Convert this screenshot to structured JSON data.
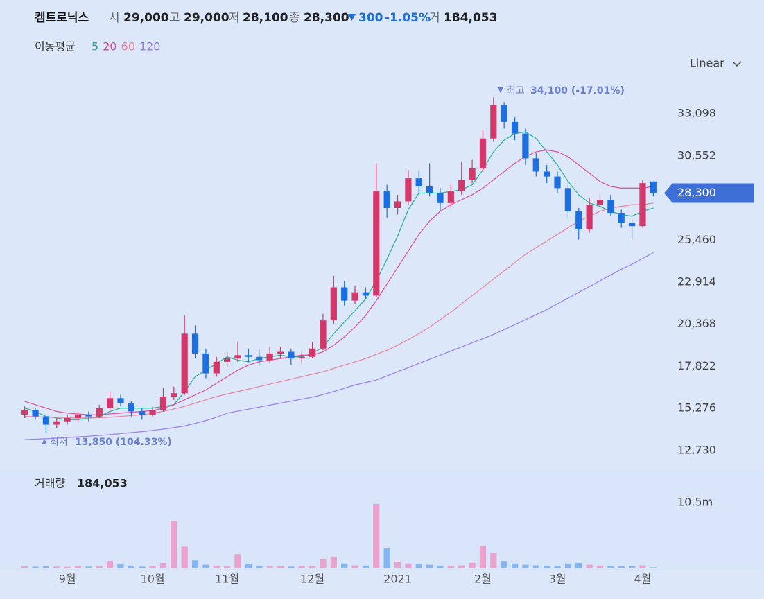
{
  "header": {
    "name": "켐트로닉스",
    "open_label": "시",
    "open": "29,000",
    "high_label": "고",
    "high": "29,000",
    "low_label": "저",
    "low": "28,100",
    "close_label": "종",
    "close": "28,300",
    "change": "300",
    "change_pct": "-1.05%",
    "volume_label": "거",
    "volume": "184,053"
  },
  "scale_button": "Linear",
  "chart_data": {
    "type": "candlestick",
    "ma_title": "이동평균",
    "categories": [
      null,
      null,
      null,
      null,
      "9월",
      null,
      null,
      null,
      null,
      null,
      null,
      null,
      "10월",
      null,
      null,
      null,
      null,
      null,
      null,
      "11월",
      null,
      null,
      null,
      null,
      null,
      null,
      null,
      "12월",
      null,
      null,
      null,
      null,
      null,
      null,
      null,
      "2021",
      null,
      null,
      null,
      null,
      null,
      null,
      null,
      "2월",
      null,
      null,
      null,
      null,
      null,
      null,
      "3월",
      null,
      null,
      null,
      null,
      null,
      null,
      null,
      "4월",
      null
    ],
    "open": [
      14900,
      15200,
      14800,
      14300,
      14500,
      14700,
      14900,
      14800,
      15300,
      15900,
      15600,
      15100,
      14900,
      15200,
      16000,
      16200,
      19800,
      18600,
      17400,
      18100,
      18300,
      18500,
      18400,
      18200,
      18600,
      18700,
      18300,
      18400,
      18900,
      20600,
      22600,
      21800,
      22300,
      22100,
      28400,
      27400,
      27800,
      29200,
      28700,
      28300,
      27700,
      28400,
      29100,
      29800,
      31600,
      33600,
      32600,
      31900,
      30400,
      29600,
      29300,
      28600,
      27200,
      26100,
      27600,
      27900,
      27100,
      26500,
      26300,
      29000
    ],
    "high": [
      15400,
      15300,
      14900,
      14700,
      14900,
      15100,
      15100,
      15500,
      16300,
      16100,
      15700,
      15300,
      15400,
      16500,
      16600,
      20900,
      20300,
      18900,
      18400,
      18700,
      19300,
      18900,
      18800,
      19000,
      19000,
      18900,
      18700,
      19300,
      21000,
      23300,
      23000,
      22700,
      22600,
      30100,
      28800,
      28200,
      29700,
      29600,
      30100,
      28600,
      28800,
      30200,
      30300,
      32100,
      34100,
      33800,
      32900,
      32200,
      30700,
      30000,
      29600,
      28900,
      27400,
      28000,
      28300,
      28200,
      27300,
      26700,
      29100,
      29000
    ],
    "low": [
      14700,
      14600,
      13850,
      14100,
      14300,
      14500,
      14500,
      14700,
      15200,
      15400,
      14800,
      14600,
      14800,
      15100,
      15800,
      16100,
      18300,
      17100,
      17200,
      17800,
      18100,
      18100,
      17900,
      18000,
      18300,
      17900,
      18000,
      18300,
      18800,
      20400,
      21500,
      21600,
      21900,
      22000,
      26800,
      27000,
      27600,
      28300,
      28100,
      27200,
      27500,
      28200,
      28900,
      29600,
      31400,
      32200,
      31500,
      30000,
      29300,
      28900,
      28300,
      26800,
      25500,
      25900,
      27400,
      26900,
      26200,
      25500,
      26200,
      28100
    ],
    "close": [
      15200,
      14800,
      14300,
      14500,
      14700,
      14900,
      14800,
      15300,
      15900,
      15600,
      15100,
      14900,
      15200,
      16000,
      16200,
      19800,
      18600,
      17400,
      18100,
      18300,
      18500,
      18400,
      18200,
      18600,
      18700,
      18300,
      18400,
      18900,
      20600,
      22600,
      21800,
      22300,
      22100,
      28400,
      27400,
      27800,
      29200,
      28700,
      28300,
      27700,
      28400,
      29100,
      29800,
      31600,
      33600,
      32600,
      31900,
      30400,
      29600,
      29300,
      28600,
      27200,
      26100,
      27600,
      27900,
      27100,
      26500,
      26300,
      28900,
      28300
    ],
    "volume": [
      320000,
      280000,
      350000,
      300000,
      260000,
      410000,
      300000,
      380000,
      1200000,
      650000,
      450000,
      300000,
      380000,
      900000,
      7600000,
      3500000,
      1300000,
      600000,
      450000,
      380000,
      2300000,
      700000,
      450000,
      380000,
      350000,
      300000,
      420000,
      380000,
      1500000,
      1900000,
      800000,
      500000,
      450000,
      10300000,
      3200000,
      1100000,
      800000,
      650000,
      600000,
      450000,
      420000,
      500000,
      900000,
      3600000,
      2500000,
      1200000,
      800000,
      600000,
      500000,
      450000,
      420000,
      800000,
      900000,
      600000,
      450000,
      400000,
      380000,
      350000,
      500000,
      184053
    ],
    "up_color": "#d2386a",
    "down_color": "#1c6fe0",
    "volume_up_color": "#e9a3cf",
    "volume_down_color": "#86b6f2",
    "series": [
      {
        "name": "5",
        "color": "#1fae8c",
        "values": [
          15300,
          15100,
          14800,
          14700,
          14600,
          14600,
          14700,
          14800,
          15100,
          15300,
          15300,
          15300,
          15300,
          15400,
          15500,
          16300,
          17200,
          17600,
          18000,
          18400,
          18200,
          18100,
          18300,
          18400,
          18500,
          18400,
          18400,
          18600,
          19000,
          19800,
          20500,
          21200,
          21900,
          23000,
          24300,
          25700,
          27300,
          28300,
          28300,
          28300,
          28400,
          28500,
          28800,
          29700,
          30800,
          31500,
          31900,
          32000,
          31600,
          30800,
          30000,
          29000,
          28200,
          27700,
          27500,
          27200,
          27000,
          26900,
          27200,
          27400
        ]
      },
      {
        "name": "20",
        "color": "#d9489a",
        "values": [
          15700,
          15500,
          15300,
          15100,
          15000,
          14950,
          14900,
          14900,
          14950,
          15000,
          15050,
          15100,
          15150,
          15300,
          15500,
          15800,
          16100,
          16400,
          16800,
          17200,
          17600,
          17900,
          18100,
          18200,
          18300,
          18400,
          18500,
          18500,
          18700,
          19100,
          19600,
          20200,
          20900,
          21800,
          22800,
          23800,
          24800,
          25800,
          26600,
          27200,
          27600,
          27900,
          28200,
          28600,
          29100,
          29600,
          30100,
          30500,
          30800,
          30900,
          30800,
          30500,
          30000,
          29500,
          29000,
          28700,
          28600,
          28600,
          28600,
          28700
        ]
      },
      {
        "name": "60",
        "color": "#e8809a",
        "values": [
          14800,
          14780,
          14760,
          14740,
          14720,
          14700,
          14700,
          14720,
          14750,
          14800,
          14850,
          14900,
          15000,
          15100,
          15250,
          15400,
          15600,
          15800,
          16000,
          16150,
          16300,
          16450,
          16600,
          16750,
          16900,
          17050,
          17200,
          17350,
          17500,
          17700,
          17900,
          18100,
          18300,
          18550,
          18800,
          19100,
          19450,
          19800,
          20200,
          20650,
          21100,
          21600,
          22100,
          22600,
          23100,
          23600,
          24100,
          24600,
          25000,
          25400,
          25800,
          26200,
          26600,
          26900,
          27200,
          27400,
          27500,
          27600,
          27600,
          27700
        ]
      },
      {
        "name": "120",
        "color": "#9a78ec",
        "values": [
          13400,
          13420,
          13450,
          13480,
          13520,
          13560,
          13600,
          13650,
          13700,
          13760,
          13820,
          13880,
          13950,
          14030,
          14120,
          14220,
          14380,
          14550,
          14750,
          15000,
          15120,
          15240,
          15360,
          15480,
          15600,
          15720,
          15840,
          15960,
          16120,
          16300,
          16500,
          16700,
          16850,
          17000,
          17250,
          17500,
          17750,
          18000,
          18250,
          18500,
          18750,
          19000,
          19250,
          19500,
          19750,
          20050,
          20350,
          20650,
          20950,
          21250,
          21600,
          21950,
          22300,
          22650,
          23000,
          23350,
          23700,
          24000,
          24350,
          24700
        ]
      }
    ],
    "ylim": [
      11682,
      35571
    ],
    "yticks": [
      {
        "value": 12730,
        "label": "12,730"
      },
      {
        "value": 15276,
        "label": "15,276"
      },
      {
        "value": 17822,
        "label": "17,822"
      },
      {
        "value": 20368,
        "label": "20,368"
      },
      {
        "value": 22914,
        "label": "22,914"
      },
      {
        "value": 25460,
        "label": "25,460"
      },
      {
        "value": 30552,
        "label": "30,552"
      },
      {
        "value": 33098,
        "label": "33,098"
      }
    ],
    "grid": false,
    "last_label": "28,300",
    "high_annotation": {
      "label": "최고",
      "text": "34,100 (-17.01%)"
    },
    "low_annotation": {
      "label": "최저",
      "text": "13,850 (104.33%)"
    },
    "volume_title": "거래량",
    "volume_value": "184,053",
    "vlim": [
      0,
      15470000
    ],
    "vticks": [
      {
        "value": 10500000,
        "label": "10.5m"
      }
    ]
  }
}
